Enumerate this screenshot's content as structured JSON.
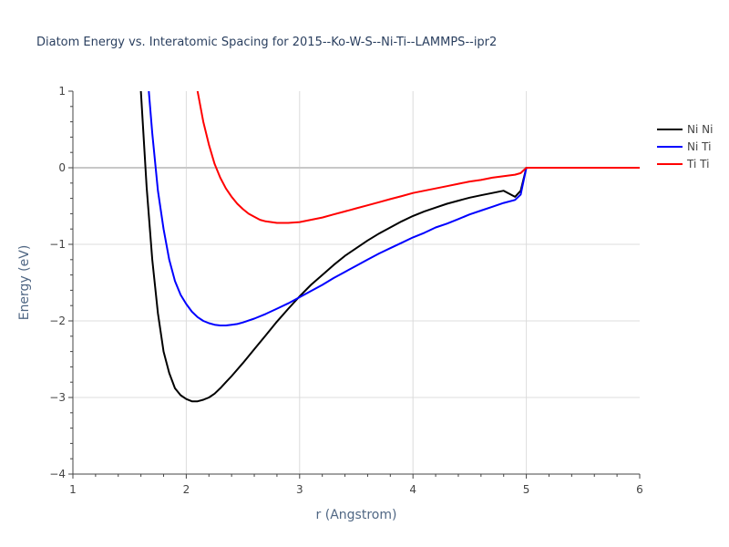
{
  "chart_data": {
    "type": "line",
    "title": "Diatom Energy vs. Interatomic Spacing for 2015--Ko-W-S--Ni-Ti--LAMMPS--ipr2",
    "xlabel": "r (Angstrom)",
    "ylabel": "Energy (eV)",
    "xlim": [
      1,
      6
    ],
    "ylim": [
      -4,
      1
    ],
    "x_ticks": [
      "1",
      "2",
      "3",
      "4",
      "5",
      "6"
    ],
    "y_ticks": [
      "1",
      "0",
      "−1",
      "−2",
      "−3",
      "−4"
    ],
    "grid": true,
    "legend_position": "top-right",
    "series": [
      {
        "name": "Ni Ni",
        "color": "#000000",
        "x": [
          1.6,
          1.65,
          1.7,
          1.75,
          1.8,
          1.85,
          1.9,
          1.95,
          2.0,
          2.05,
          2.1,
          2.15,
          2.2,
          2.25,
          2.3,
          2.35,
          2.4,
          2.5,
          2.6,
          2.7,
          2.8,
          2.9,
          3.0,
          3.1,
          3.2,
          3.3,
          3.4,
          3.5,
          3.6,
          3.7,
          3.8,
          3.9,
          4.0,
          4.1,
          4.2,
          4.3,
          4.4,
          4.5,
          4.6,
          4.7,
          4.8,
          4.9,
          4.95,
          5.0,
          5.2,
          5.4,
          5.6,
          5.8,
          6.0
        ],
        "y": [
          1.0,
          -0.25,
          -1.2,
          -1.9,
          -2.4,
          -2.68,
          -2.88,
          -2.97,
          -3.02,
          -3.05,
          -3.05,
          -3.03,
          -3.0,
          -2.95,
          -2.88,
          -2.8,
          -2.72,
          -2.55,
          -2.37,
          -2.19,
          -2.01,
          -1.84,
          -1.68,
          -1.53,
          -1.4,
          -1.27,
          -1.15,
          -1.05,
          -0.95,
          -0.86,
          -0.78,
          -0.7,
          -0.63,
          -0.57,
          -0.52,
          -0.47,
          -0.43,
          -0.39,
          -0.36,
          -0.33,
          -0.3,
          -0.38,
          -0.3,
          0.0,
          0.0,
          0.0,
          0.0,
          0.0,
          0.0
        ]
      },
      {
        "name": "Ni Ti",
        "color": "#0000ff",
        "x": [
          1.67,
          1.7,
          1.75,
          1.8,
          1.85,
          1.9,
          1.95,
          2.0,
          2.05,
          2.1,
          2.15,
          2.2,
          2.25,
          2.3,
          2.35,
          2.4,
          2.45,
          2.5,
          2.6,
          2.7,
          2.8,
          2.9,
          3.0,
          3.1,
          3.2,
          3.3,
          3.4,
          3.5,
          3.6,
          3.7,
          3.8,
          3.9,
          4.0,
          4.1,
          4.2,
          4.3,
          4.4,
          4.5,
          4.6,
          4.7,
          4.8,
          4.9,
          4.95,
          5.0,
          5.2,
          5.4,
          5.6,
          5.8,
          6.0
        ],
        "y": [
          1.0,
          0.45,
          -0.3,
          -0.8,
          -1.2,
          -1.48,
          -1.66,
          -1.78,
          -1.88,
          -1.95,
          -2.0,
          -2.03,
          -2.05,
          -2.06,
          -2.06,
          -2.05,
          -2.04,
          -2.02,
          -1.97,
          -1.91,
          -1.84,
          -1.77,
          -1.69,
          -1.61,
          -1.53,
          -1.44,
          -1.36,
          -1.28,
          -1.2,
          -1.12,
          -1.05,
          -0.98,
          -0.91,
          -0.85,
          -0.78,
          -0.73,
          -0.67,
          -0.61,
          -0.56,
          -0.51,
          -0.46,
          -0.42,
          -0.35,
          0.0,
          0.0,
          0.0,
          0.0,
          0.0,
          0.0
        ]
      },
      {
        "name": "Ti Ti",
        "color": "#ff0000",
        "x": [
          2.1,
          2.15,
          2.2,
          2.25,
          2.3,
          2.35,
          2.4,
          2.45,
          2.5,
          2.55,
          2.6,
          2.65,
          2.7,
          2.75,
          2.8,
          2.85,
          2.9,
          3.0,
          3.1,
          3.2,
          3.3,
          3.4,
          3.5,
          3.6,
          3.7,
          3.8,
          3.9,
          4.0,
          4.1,
          4.2,
          4.3,
          4.4,
          4.5,
          4.6,
          4.7,
          4.8,
          4.9,
          4.95,
          5.0,
          5.2,
          5.4,
          5.6,
          5.8,
          6.0
        ],
        "y": [
          1.0,
          0.6,
          0.3,
          0.05,
          -0.13,
          -0.27,
          -0.38,
          -0.47,
          -0.54,
          -0.6,
          -0.64,
          -0.68,
          -0.7,
          -0.71,
          -0.72,
          -0.72,
          -0.72,
          -0.71,
          -0.68,
          -0.65,
          -0.61,
          -0.57,
          -0.53,
          -0.49,
          -0.45,
          -0.41,
          -0.37,
          -0.33,
          -0.3,
          -0.27,
          -0.24,
          -0.21,
          -0.18,
          -0.16,
          -0.13,
          -0.11,
          -0.09,
          -0.07,
          0.0,
          0.0,
          0.0,
          0.0,
          0.0,
          0.0
        ]
      }
    ]
  }
}
